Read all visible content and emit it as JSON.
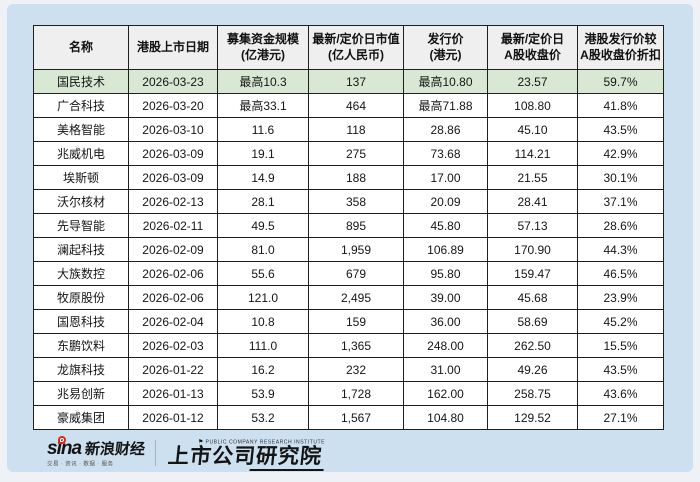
{
  "colors": {
    "card_bg": "#cde0f0",
    "page_bg": "#eef2f6",
    "header_bg": "#efefef",
    "highlight_row_bg": "#d9e8d2",
    "border": "#1f1f1f",
    "sina_red": "#d42b1e"
  },
  "chart_data": {
    "type": "table",
    "title": "",
    "columns": [
      "名称",
      "港股上市日期",
      "募集资金规模\n(亿港元)",
      "最新/定价日市值\n(亿人民币)",
      "发行价\n(港元)",
      "最新/定价日\nA股收盘价",
      "港股发行价较\nA股收盘价折扣"
    ],
    "highlighted_row": 0,
    "rows": [
      [
        "国民技术",
        "2026-03-23",
        "最高10.3",
        "137",
        "最高10.80",
        "23.57",
        "59.7%"
      ],
      [
        "广合科技",
        "2026-03-20",
        "最高33.1",
        "464",
        "最高71.88",
        "108.80",
        "41.8%"
      ],
      [
        "美格智能",
        "2026-03-10",
        "11.6",
        "118",
        "28.86",
        "45.10",
        "43.5%"
      ],
      [
        "兆威机电",
        "2026-03-09",
        "19.1",
        "275",
        "73.68",
        "114.21",
        "42.9%"
      ],
      [
        "埃斯顿",
        "2026-03-09",
        "14.9",
        "188",
        "17.00",
        "21.55",
        "30.1%"
      ],
      [
        "沃尔核材",
        "2026-02-13",
        "28.1",
        "358",
        "20.09",
        "28.41",
        "37.1%"
      ],
      [
        "先导智能",
        "2026-02-11",
        "49.5",
        "895",
        "45.80",
        "57.13",
        "28.6%"
      ],
      [
        "澜起科技",
        "2026-02-09",
        "81.0",
        "1,959",
        "106.89",
        "170.90",
        "44.3%"
      ],
      [
        "大族数控",
        "2026-02-06",
        "55.6",
        "679",
        "95.80",
        "159.47",
        "46.5%"
      ],
      [
        "牧原股份",
        "2026-02-06",
        "121.0",
        "2,495",
        "39.00",
        "45.68",
        "23.9%"
      ],
      [
        "国恩科技",
        "2026-02-04",
        "10.8",
        "159",
        "36.00",
        "58.69",
        "45.2%"
      ],
      [
        "东鹏饮料",
        "2026-02-03",
        "111.0",
        "1,365",
        "248.00",
        "262.50",
        "15.5%"
      ],
      [
        "龙旗科技",
        "2026-01-22",
        "16.2",
        "232",
        "31.00",
        "49.26",
        "43.5%"
      ],
      [
        "兆易创新",
        "2026-01-13",
        "53.9",
        "1,728",
        "162.00",
        "258.75",
        "43.6%"
      ],
      [
        "豪威集团",
        "2026-01-12",
        "53.2",
        "1,567",
        "104.80",
        "129.52",
        "27.1%"
      ]
    ]
  },
  "footer": {
    "sina_logo_text": "sina",
    "sina_brand": "新浪财经",
    "sina_tagline": "交易 · 资讯 · 数据 · 服务",
    "institute_caption": "PUBLIC COMPANY RESEARCH INSTITUTE",
    "institute_name": "上市公司研究院",
    "flag_glyph": "⚑"
  }
}
